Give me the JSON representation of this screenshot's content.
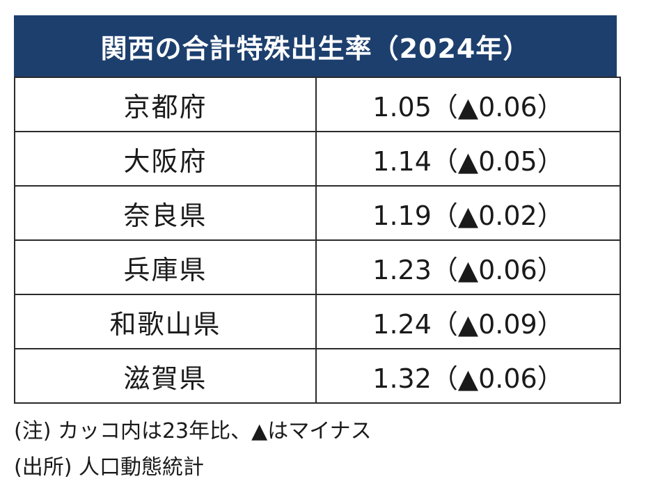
{
  "title": "関西の合計特殊出生率（2024年）",
  "rows": [
    {
      "prefecture": "京都府",
      "value": "1.05（▲0.06）"
    },
    {
      "prefecture": "大阪府",
      "value": "1.14（▲0.05）"
    },
    {
      "prefecture": "奈良県",
      "value": "1.19（▲0.02）"
    },
    {
      "prefecture": "兵庫県",
      "value": "1.23（▲0.06）"
    },
    {
      "prefecture": "和歌山県",
      "value": "1.24（▲0.09）"
    },
    {
      "prefecture": "滋賀県",
      "value": "1.32（▲0.06）"
    }
  ],
  "notes": {
    "note": "(注) カッコ内は23年比、▲はマイナス",
    "source": "(出所) 人口動態統計"
  },
  "colors": {
    "header_background": "#1c3f6e",
    "header_text": "#ffffff",
    "border": "#2a2a2a"
  }
}
